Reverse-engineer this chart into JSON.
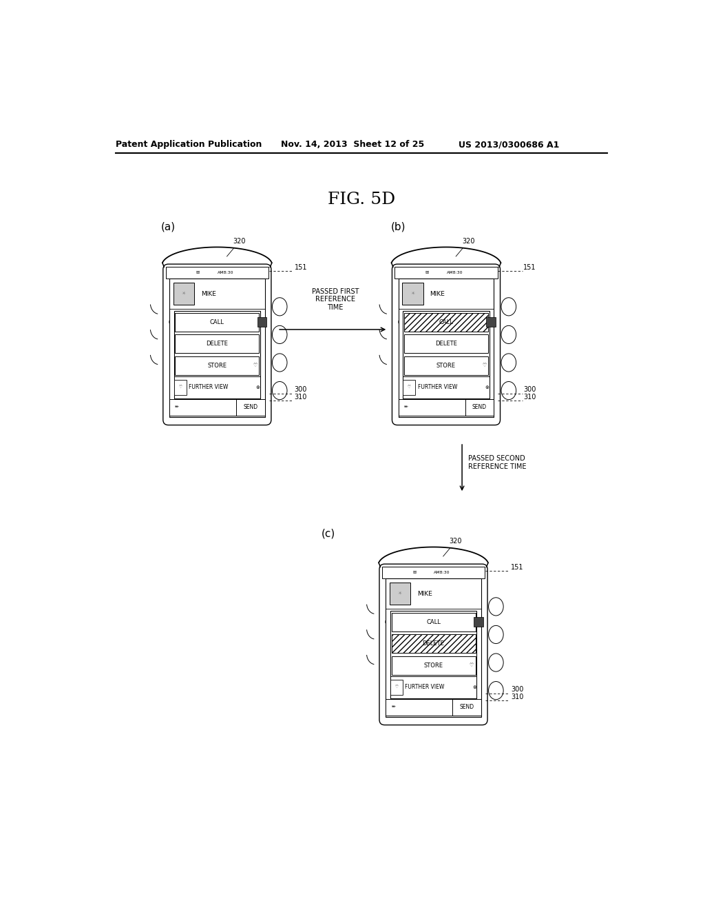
{
  "title": "FIG. 5D",
  "header_left": "Patent Application Publication",
  "header_mid": "Nov. 14, 2013  Sheet 12 of 25",
  "header_right": "US 2013/0300686 A1",
  "bg_color": "#ffffff",
  "line_color": "#000000",
  "label_a": "(a)",
  "label_b": "(b)",
  "label_c": "(c)",
  "arrow_label": "PASSED FIRST\nREFERENCE\nTIME",
  "arrow_label2": "PASSED SECOND\nREFERENCE TIME",
  "menu_items": [
    "CALL",
    "DELETE",
    "STORE",
    "FURTHER VIEW"
  ],
  "name_text": "MIKE",
  "send_text": "SEND",
  "am_text": "AM8:30",
  "ref_320": "320",
  "ref_151": "151",
  "ref_300": "300",
  "ref_310": "310"
}
